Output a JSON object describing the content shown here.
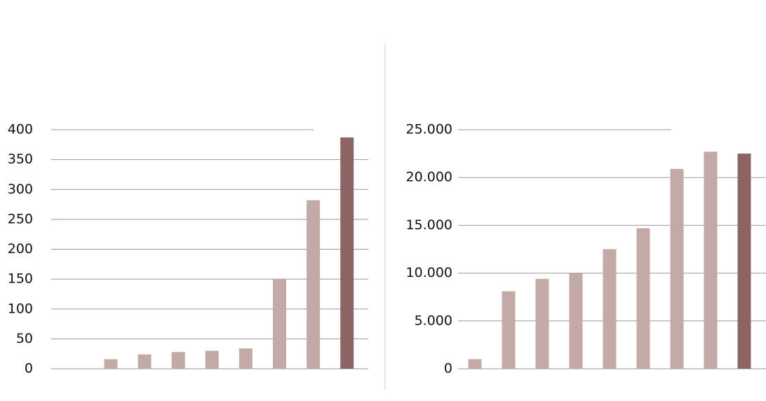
{
  "chart_data": [
    {
      "type": "bar",
      "categories": [
        null,
        null,
        null,
        null,
        null,
        null,
        null,
        null
      ],
      "values": [
        16,
        24,
        28,
        30,
        34,
        150,
        282,
        387
      ],
      "colors": [
        "#c4aaa6",
        "#c4aaa6",
        "#c4aaa6",
        "#c4aaa6",
        "#c4aaa6",
        "#c4aaa6",
        "#c4aaa6",
        "#8d6464"
      ],
      "ylim": [
        0,
        400
      ],
      "yticks": [
        0,
        50,
        100,
        150,
        200,
        250,
        300,
        350,
        400
      ],
      "grid": true
    },
    {
      "type": "bar",
      "categories": [
        null,
        null,
        null,
        null,
        null,
        null,
        null,
        null,
        null
      ],
      "values": [
        1000,
        8100,
        9400,
        10000,
        12500,
        14700,
        20900,
        22700,
        22500
      ],
      "colors": [
        "#c4aaa6",
        "#c4aaa6",
        "#c4aaa6",
        "#c4aaa6",
        "#c4aaa6",
        "#c4aaa6",
        "#c4aaa6",
        "#c4aaa6",
        "#8d6464"
      ],
      "ylim": [
        0,
        25000
      ],
      "yticks": [
        0,
        {
          "value": 5000,
          "label": "5.000"
        },
        {
          "value": 10000,
          "label": "10.000"
        },
        {
          "value": 15000,
          "label": "15.000"
        },
        {
          "value": 20000,
          "label": "20.000"
        },
        {
          "value": 25000,
          "label": "25.000"
        }
      ],
      "grid": true
    }
  ]
}
